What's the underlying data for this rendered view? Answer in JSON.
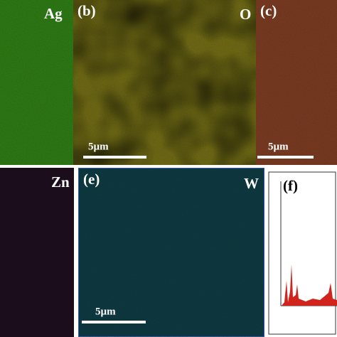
{
  "panels": [
    {
      "label": "Ag"
    },
    {
      "label": "(b)",
      "scale": "5µm"
    },
    {
      "label": "O"
    },
    {
      "label": "(c)",
      "scale": "5µm"
    },
    {
      "label": "Zn"
    },
    {
      "label": "(e)",
      "element": "W",
      "scale": "5µm"
    },
    {
      "label": "(f)"
    }
  ]
}
